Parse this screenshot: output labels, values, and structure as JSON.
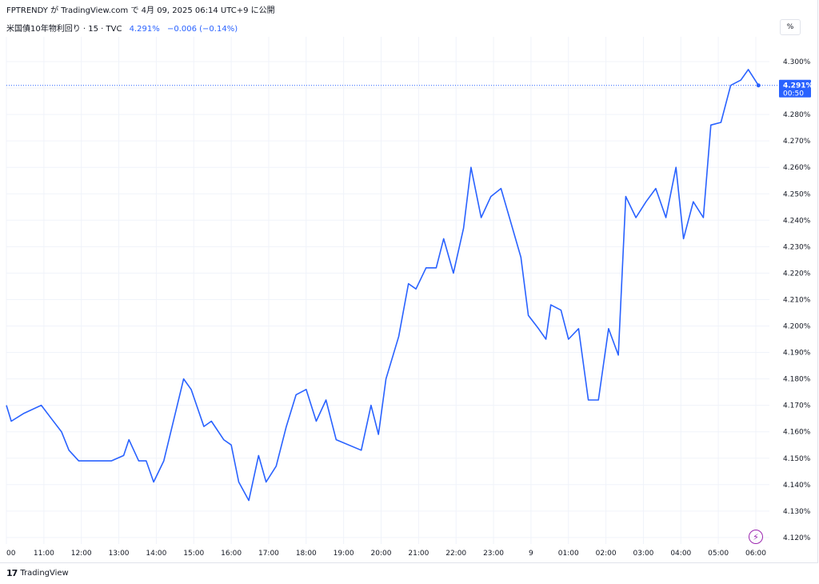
{
  "header": {
    "text": "FPTRENDY が TradingView.com で 4月 09, 2025 06:14 UTC+9 に公開"
  },
  "symbol": {
    "name": "米国債10年物利回り · 15 · TVC",
    "value": "4.291%",
    "change": "−0.006 (−0.14%)"
  },
  "toolbar": {
    "percent_label": "%"
  },
  "price_label": {
    "value": "4.291%",
    "countdown": "00:50"
  },
  "footer": {
    "brand": "TradingView",
    "logo": "17"
  },
  "colors": {
    "line": "#2962ff",
    "grid": "#f0f3fa",
    "label_bg": "#2962ff",
    "bolt": "#9c27b0"
  },
  "icons": {
    "bolt": "lightning-icon",
    "logo": "tradingview-logo-icon"
  },
  "chart_data": {
    "type": "line",
    "y_axis": {
      "min": 4.12,
      "max": 4.3,
      "step": 0.01,
      "suffix": "%",
      "decimals": 3,
      "side": "right"
    },
    "x_axis": {
      "ticks": [
        {
          "t": 0,
          "label": "00"
        },
        {
          "t": 1,
          "label": "11:00"
        },
        {
          "t": 2,
          "label": "12:00"
        },
        {
          "t": 3,
          "label": "13:00"
        },
        {
          "t": 4,
          "label": "14:00"
        },
        {
          "t": 5,
          "label": "15:00"
        },
        {
          "t": 6,
          "label": "16:00"
        },
        {
          "t": 7,
          "label": "17:00"
        },
        {
          "t": 8,
          "label": "18:00"
        },
        {
          "t": 9,
          "label": "19:00"
        },
        {
          "t": 10,
          "label": "20:00"
        },
        {
          "t": 11,
          "label": "21:00"
        },
        {
          "t": 12,
          "label": "22:00"
        },
        {
          "t": 13,
          "label": "23:00"
        },
        {
          "t": 14,
          "label": "9"
        },
        {
          "t": 15,
          "label": "01:00"
        },
        {
          "t": 16,
          "label": "02:00"
        },
        {
          "t": 17,
          "label": "03:00"
        },
        {
          "t": 18,
          "label": "04:00"
        },
        {
          "t": 19,
          "label": "05:00"
        },
        {
          "t": 20,
          "label": "06:00"
        }
      ]
    },
    "last_value": 4.291,
    "series": [
      {
        "values": [
          [
            0.0,
            4.17
          ],
          [
            0.13,
            4.164
          ],
          [
            0.47,
            4.167
          ],
          [
            0.93,
            4.17
          ],
          [
            1.2,
            4.165
          ],
          [
            1.47,
            4.16
          ],
          [
            1.67,
            4.153
          ],
          [
            1.93,
            4.149
          ],
          [
            2.47,
            4.149
          ],
          [
            2.8,
            4.149
          ],
          [
            3.13,
            4.151
          ],
          [
            3.27,
            4.157
          ],
          [
            3.53,
            4.149
          ],
          [
            3.73,
            4.149
          ],
          [
            3.93,
            4.141
          ],
          [
            4.2,
            4.149
          ],
          [
            4.73,
            4.18
          ],
          [
            4.93,
            4.176
          ],
          [
            5.27,
            4.162
          ],
          [
            5.47,
            4.164
          ],
          [
            5.8,
            4.157
          ],
          [
            6.0,
            4.155
          ],
          [
            6.2,
            4.141
          ],
          [
            6.47,
            4.134
          ],
          [
            6.73,
            4.151
          ],
          [
            6.93,
            4.141
          ],
          [
            7.2,
            4.147
          ],
          [
            7.47,
            4.162
          ],
          [
            7.73,
            4.174
          ],
          [
            8.0,
            4.176
          ],
          [
            8.27,
            4.164
          ],
          [
            8.53,
            4.172
          ],
          [
            8.8,
            4.157
          ],
          [
            9.47,
            4.153
          ],
          [
            9.73,
            4.17
          ],
          [
            9.93,
            4.159
          ],
          [
            10.13,
            4.18
          ],
          [
            10.47,
            4.196
          ],
          [
            10.73,
            4.216
          ],
          [
            10.93,
            4.214
          ],
          [
            11.2,
            4.222
          ],
          [
            11.47,
            4.222
          ],
          [
            11.67,
            4.233
          ],
          [
            11.93,
            4.22
          ],
          [
            12.2,
            4.237
          ],
          [
            12.4,
            4.26
          ],
          [
            12.67,
            4.241
          ],
          [
            12.93,
            4.249
          ],
          [
            13.2,
            4.252
          ],
          [
            13.73,
            4.226
          ],
          [
            13.93,
            4.204
          ],
          [
            14.2,
            4.199
          ],
          [
            14.4,
            4.195
          ],
          [
            14.53,
            4.208
          ],
          [
            14.8,
            4.206
          ],
          [
            15.0,
            4.195
          ],
          [
            15.27,
            4.199
          ],
          [
            15.53,
            4.172
          ],
          [
            15.8,
            4.172
          ],
          [
            16.07,
            4.199
          ],
          [
            16.33,
            4.189
          ],
          [
            16.53,
            4.249
          ],
          [
            16.8,
            4.241
          ],
          [
            17.07,
            4.247
          ],
          [
            17.33,
            4.252
          ],
          [
            17.6,
            4.241
          ],
          [
            17.87,
            4.26
          ],
          [
            18.07,
            4.233
          ],
          [
            18.33,
            4.247
          ],
          [
            18.6,
            4.241
          ],
          [
            18.8,
            4.276
          ],
          [
            19.07,
            4.277
          ],
          [
            19.33,
            4.291
          ],
          [
            19.6,
            4.293
          ],
          [
            19.8,
            4.297
          ],
          [
            20.07,
            4.291
          ]
        ]
      }
    ]
  }
}
